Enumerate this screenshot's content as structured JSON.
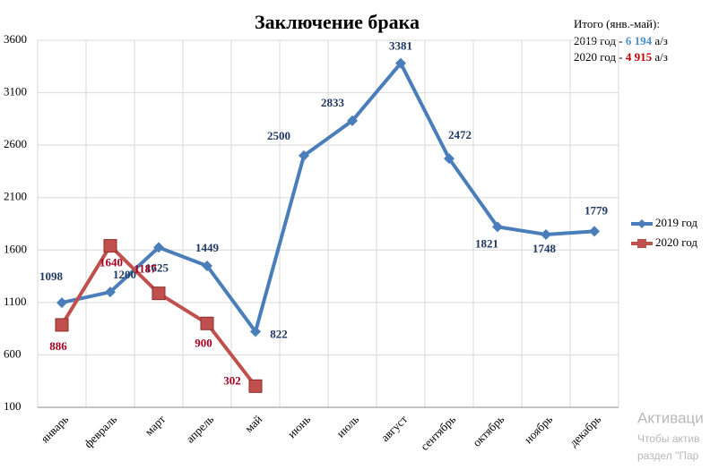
{
  "chart_data": {
    "type": "line",
    "title": "Заключение брака",
    "categories": [
      "январь",
      "февраль",
      "март",
      "апрель",
      "май",
      "июнь",
      "июль",
      "август",
      "сентябрь",
      "октябрь",
      "ноябрь",
      "декабрь"
    ],
    "series": [
      {
        "name": "2019 год",
        "color": "#4a7ebb",
        "values": [
          1098,
          1200,
          1625,
          1449,
          822,
          2500,
          2833,
          3381,
          2472,
          1821,
          1748,
          1779
        ]
      },
      {
        "name": "2020 год",
        "color": "#c0504d",
        "values": [
          886,
          1640,
          1187,
          900,
          302,
          null,
          null,
          null,
          null,
          null,
          null,
          null
        ]
      }
    ],
    "ylim": [
      100,
      3600
    ],
    "yticks": [
      100,
      600,
      1100,
      1600,
      2100,
      2600,
      3100,
      3600
    ],
    "grid": true,
    "legend": "right",
    "annotation": {
      "title": "Итого (янв.-май):",
      "lines": [
        {
          "label": "2019 год - ",
          "total": "6 194",
          "unit": " а/з"
        },
        {
          "label": "2020 год - ",
          "total": "4 915",
          "unit": " а/з"
        }
      ]
    }
  },
  "watermark": [
    "Активаци",
    "Чтобы актив",
    "раздел \"Пар"
  ]
}
